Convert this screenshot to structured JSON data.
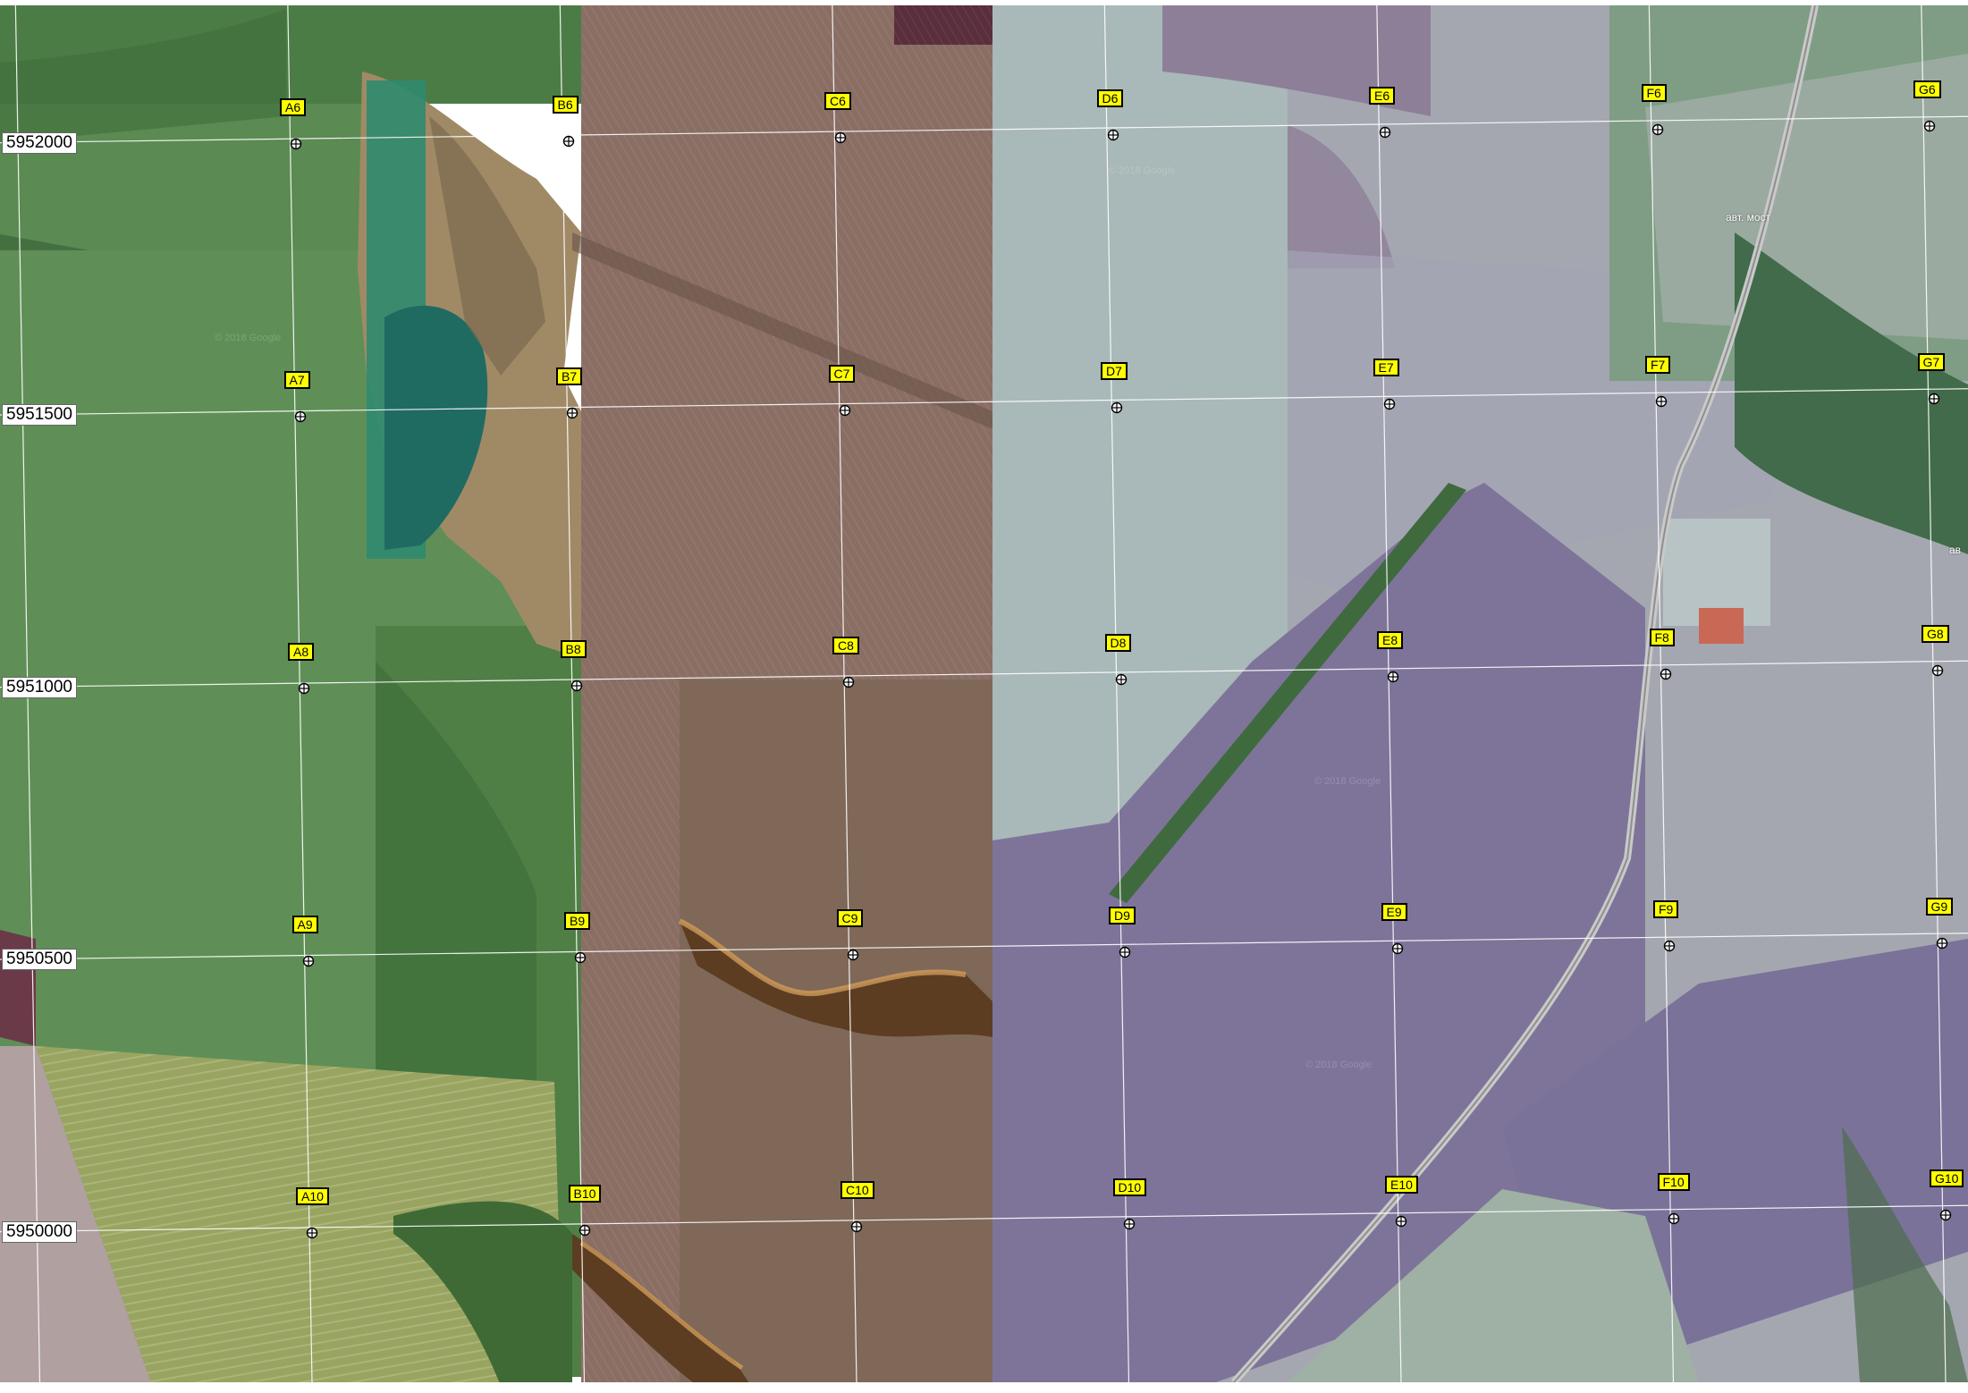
{
  "northings": [
    "5952000",
    "5951500",
    "5951000",
    "5950500",
    "5950000"
  ],
  "columns": [
    "A",
    "B",
    "C",
    "D",
    "E",
    "F",
    "G"
  ],
  "rows": [
    "6",
    "7",
    "8",
    "9",
    "10"
  ],
  "place_labels": [
    "авт. мост",
    "ав"
  ],
  "watermark_text": "© 2018 Google",
  "colors": {
    "marker_fill": "#ffff00",
    "grid_line": "#ffffff",
    "label_background": "#ffffff"
  }
}
